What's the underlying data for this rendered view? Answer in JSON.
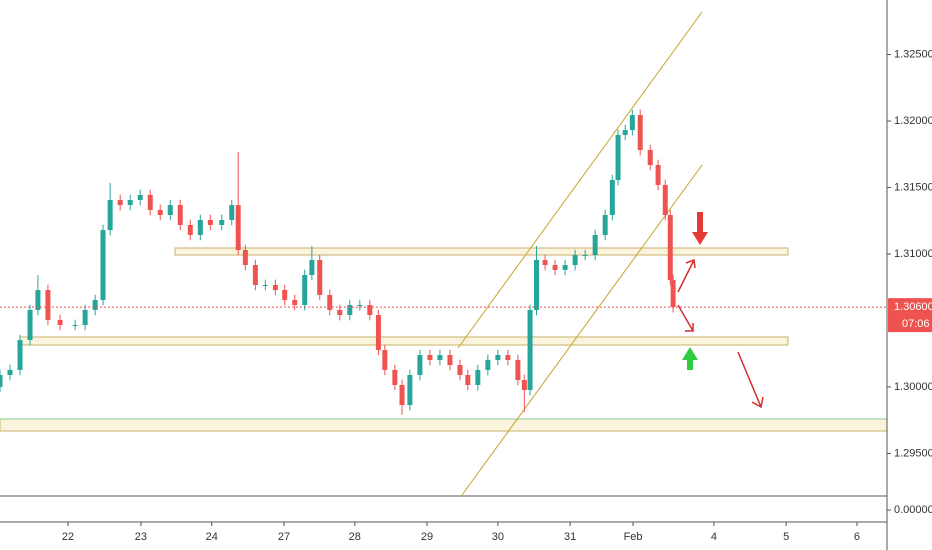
{
  "chart_data": {
    "type": "candlestick",
    "x": [
      -0.95,
      -0.81,
      -0.67,
      -0.53,
      -0.42,
      -0.28,
      -0.11,
      0.1,
      0.24,
      0.38,
      0.49,
      0.59,
      0.73,
      0.87,
      1.01,
      1.15,
      1.29,
      1.43,
      1.57,
      1.71,
      1.85,
      1.99,
      2.15,
      2.29,
      2.38,
      2.48,
      2.62,
      2.76,
      2.9,
      3.03,
      3.17,
      3.31,
      3.41,
      3.52,
      3.66,
      3.8,
      3.94,
      4.08,
      4.22,
      4.34,
      4.43,
      4.57,
      4.67,
      4.78,
      4.92,
      5.06,
      5.2,
      5.34,
      5.48,
      5.59,
      5.73,
      5.87,
      6.01,
      6.15,
      6.29,
      6.38,
      6.46,
      6.55,
      6.67,
      6.81,
      6.95,
      7.09,
      7.23,
      7.37,
      7.51,
      7.61,
      7.69,
      7.79,
      7.89,
      8.0,
      8.14,
      8.25,
      8.35,
      8.42,
      8.46
    ],
    "open": [
      1.3,
      1.3009,
      1.30128,
      1.30353,
      1.30579,
      1.30729,
      1.30504,
      1.30466,
      1.30466,
      1.30579,
      1.30654,
      1.3118,
      1.31406,
      1.31368,
      1.31406,
      1.31444,
      1.31331,
      1.31293,
      1.31368,
      1.31218,
      1.31143,
      1.31256,
      1.31218,
      1.31256,
      1.31368,
      1.3103,
      1.30917,
      1.30767,
      1.30767,
      1.30729,
      1.30654,
      1.30616,
      1.30842,
      1.30955,
      1.30692,
      1.30579,
      1.30541,
      1.30616,
      1.30616,
      1.30541,
      1.30278,
      1.30128,
      1.30015,
      1.29864,
      1.3009,
      1.3024,
      1.30203,
      1.3024,
      1.30165,
      1.3009,
      1.30015,
      1.30128,
      1.30203,
      1.3024,
      1.30203,
      1.30052,
      1.29977,
      1.30579,
      1.30955,
      1.30917,
      1.3088,
      1.30917,
      1.30992,
      1.30992,
      1.31143,
      1.31293,
      1.31556,
      1.31895,
      1.31932,
      1.32045,
      1.31782,
      1.31669,
      1.31519,
      1.31293,
      1.30804
    ],
    "high": [
      1.3013,
      1.30168,
      1.30393,
      1.30619,
      1.30842,
      1.30769,
      1.30544,
      1.30506,
      1.30619,
      1.30694,
      1.3122,
      1.31534,
      1.31446,
      1.31446,
      1.31484,
      1.31484,
      1.31371,
      1.31408,
      1.31408,
      1.31258,
      1.31296,
      1.31296,
      1.31296,
      1.31408,
      1.31767,
      1.3107,
      1.30957,
      1.30807,
      1.30807,
      1.30769,
      1.30694,
      1.30882,
      1.3106,
      1.30995,
      1.30732,
      1.30619,
      1.30656,
      1.30656,
      1.30656,
      1.30581,
      1.30318,
      1.30168,
      1.30055,
      1.3013,
      1.3028,
      1.3028,
      1.3028,
      1.3028,
      1.30205,
      1.3013,
      1.30168,
      1.30243,
      1.3028,
      1.3028,
      1.30243,
      1.30092,
      1.30619,
      1.3106,
      1.30995,
      1.30957,
      1.30957,
      1.31032,
      1.31032,
      1.31183,
      1.31333,
      1.31596,
      1.31935,
      1.31972,
      1.32085,
      1.32085,
      1.31822,
      1.31709,
      1.31559,
      1.31333,
      1.30844
    ],
    "low": [
      1.2996,
      1.3005,
      1.30088,
      1.30313,
      1.30539,
      1.30464,
      1.30426,
      1.30426,
      1.30426,
      1.30539,
      1.30614,
      1.3114,
      1.31328,
      1.31328,
      1.31366,
      1.31291,
      1.31253,
      1.31253,
      1.31178,
      1.31103,
      1.31103,
      1.31178,
      1.31178,
      1.31216,
      1.3099,
      1.30877,
      1.30727,
      1.30727,
      1.30689,
      1.30614,
      1.30576,
      1.30576,
      1.30802,
      1.30652,
      1.30539,
      1.30501,
      1.30501,
      1.30576,
      1.30501,
      1.30238,
      1.30088,
      1.29975,
      1.2979,
      1.29824,
      1.3005,
      1.30163,
      1.30163,
      1.30125,
      1.3005,
      1.29975,
      1.29975,
      1.30088,
      1.30163,
      1.30163,
      1.30012,
      1.2981,
      1.29937,
      1.30539,
      1.30877,
      1.3084,
      1.3084,
      1.30877,
      1.30952,
      1.30952,
      1.31103,
      1.31253,
      1.31516,
      1.31855,
      1.31892,
      1.31742,
      1.31629,
      1.31479,
      1.31253,
      1.30764,
      1.3056
    ],
    "close": [
      1.3009,
      1.30128,
      1.30353,
      1.30579,
      1.30729,
      1.30504,
      1.30466,
      1.30466,
      1.30579,
      1.30654,
      1.3118,
      1.31406,
      1.31368,
      1.31406,
      1.31444,
      1.31331,
      1.31293,
      1.31368,
      1.31218,
      1.31143,
      1.31256,
      1.31218,
      1.31256,
      1.31368,
      1.3103,
      1.30917,
      1.30767,
      1.30767,
      1.30729,
      1.30654,
      1.30616,
      1.30842,
      1.30955,
      1.30692,
      1.30579,
      1.30541,
      1.30616,
      1.30616,
      1.30541,
      1.30278,
      1.30128,
      1.30015,
      1.29864,
      1.3009,
      1.3024,
      1.30203,
      1.3024,
      1.30165,
      1.3009,
      1.30015,
      1.30128,
      1.30203,
      1.3024,
      1.30203,
      1.30052,
      1.29977,
      1.30579,
      1.30955,
      1.30917,
      1.3088,
      1.30917,
      1.30992,
      1.30992,
      1.31143,
      1.31293,
      1.31556,
      1.31895,
      1.31932,
      1.32045,
      1.31782,
      1.31669,
      1.31519,
      1.31293,
      1.30804,
      1.306
    ],
    "up_color": "#26a69a",
    "down_color": "#ef5350",
    "xlim": [
      -0.95,
      11.45
    ],
    "xticks": [
      {
        "value": 0,
        "label": "22"
      },
      {
        "value": 1.02,
        "label": "23"
      },
      {
        "value": 2.01,
        "label": "24"
      },
      {
        "value": 3.02,
        "label": "27"
      },
      {
        "value": 4.01,
        "label": "28"
      },
      {
        "value": 5.02,
        "label": "29"
      },
      {
        "value": 6.01,
        "label": "30"
      },
      {
        "value": 7.02,
        "label": "31"
      },
      {
        "value": 7.9,
        "label": "Feb"
      },
      {
        "value": 9.03,
        "label": "4"
      },
      {
        "value": 10.04,
        "label": "5"
      },
      {
        "value": 11.03,
        "label": "6"
      }
    ],
    "ylim": [
      1.2918,
      1.3291
    ],
    "yticks": [
      {
        "value": 1.295,
        "label": "1.29500"
      },
      {
        "value": 1.3,
        "label": "1.30000"
      },
      {
        "value": 1.31,
        "label": "1.31000"
      },
      {
        "value": 1.315,
        "label": "1.31500"
      },
      {
        "value": 1.32,
        "label": "1.32000"
      },
      {
        "value": 1.325,
        "label": "1.32500"
      }
    ],
    "lower_pane_ticks": [
      {
        "value": 0,
        "label": "0.00000"
      }
    ],
    "last_price": {
      "value": 1.306,
      "label": "1.30600",
      "color": "#ef5350"
    },
    "countdown": "07:06",
    "grid": false
  }
}
